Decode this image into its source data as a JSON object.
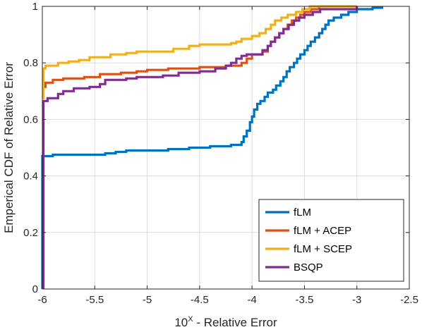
{
  "chart_data": {
    "type": "line",
    "title": "",
    "xlabel_base": "10",
    "xlabel_sup": "X",
    "xlabel_rest": " - Relative Error",
    "ylabel": "Emperical CDF of Relative Error",
    "xlim": [
      -6,
      -2.5
    ],
    "ylim": [
      0,
      1
    ],
    "xticks": [
      -6,
      -5.5,
      -5,
      -4.5,
      -4,
      -3.5,
      -3,
      -2.5
    ],
    "xtick_labels": [
      "-6",
      "-5.5",
      "-5",
      "-4.5",
      "-4",
      "-3.5",
      "-3",
      "-2.5"
    ],
    "yticks": [
      0,
      0.2,
      0.4,
      0.6,
      0.8,
      1
    ],
    "ytick_labels": [
      "0",
      "0.2",
      "0.4",
      "0.6",
      "0.8",
      "1"
    ],
    "grid": true,
    "legend_position": "bottom-right",
    "series": [
      {
        "name": "fLM",
        "color": "#0072BD",
        "points": [
          [
            -6,
            0
          ],
          [
            -6,
            0.47
          ],
          [
            -5.9,
            0.47
          ],
          [
            -5.9,
            0.475
          ],
          [
            -5.4,
            0.475
          ],
          [
            -5.4,
            0.48
          ],
          [
            -5.3,
            0.48
          ],
          [
            -5.3,
            0.485
          ],
          [
            -5.2,
            0.485
          ],
          [
            -5.2,
            0.49
          ],
          [
            -4.8,
            0.49
          ],
          [
            -4.8,
            0.495
          ],
          [
            -4.6,
            0.495
          ],
          [
            -4.6,
            0.5
          ],
          [
            -4.4,
            0.5
          ],
          [
            -4.4,
            0.505
          ],
          [
            -4.2,
            0.505
          ],
          [
            -4.2,
            0.51
          ],
          [
            -4.1,
            0.51
          ],
          [
            -4.1,
            0.52
          ],
          [
            -4.08,
            0.52
          ],
          [
            -4.08,
            0.54
          ],
          [
            -4.05,
            0.54
          ],
          [
            -4.05,
            0.56
          ],
          [
            -4.02,
            0.56
          ],
          [
            -4.02,
            0.59
          ],
          [
            -4.0,
            0.59
          ],
          [
            -4.0,
            0.61
          ],
          [
            -3.98,
            0.61
          ],
          [
            -3.98,
            0.635
          ],
          [
            -3.95,
            0.635
          ],
          [
            -3.95,
            0.655
          ],
          [
            -3.92,
            0.655
          ],
          [
            -3.92,
            0.665
          ],
          [
            -3.88,
            0.665
          ],
          [
            -3.88,
            0.68
          ],
          [
            -3.85,
            0.68
          ],
          [
            -3.85,
            0.695
          ],
          [
            -3.8,
            0.695
          ],
          [
            -3.8,
            0.705
          ],
          [
            -3.77,
            0.705
          ],
          [
            -3.77,
            0.72
          ],
          [
            -3.73,
            0.72
          ],
          [
            -3.73,
            0.735
          ],
          [
            -3.7,
            0.735
          ],
          [
            -3.7,
            0.75
          ],
          [
            -3.67,
            0.75
          ],
          [
            -3.67,
            0.77
          ],
          [
            -3.64,
            0.77
          ],
          [
            -3.64,
            0.785
          ],
          [
            -3.6,
            0.785
          ],
          [
            -3.6,
            0.8
          ],
          [
            -3.57,
            0.8
          ],
          [
            -3.57,
            0.815
          ],
          [
            -3.54,
            0.815
          ],
          [
            -3.54,
            0.83
          ],
          [
            -3.5,
            0.83
          ],
          [
            -3.5,
            0.845
          ],
          [
            -3.47,
            0.845
          ],
          [
            -3.47,
            0.86
          ],
          [
            -3.44,
            0.86
          ],
          [
            -3.44,
            0.875
          ],
          [
            -3.4,
            0.875
          ],
          [
            -3.4,
            0.89
          ],
          [
            -3.36,
            0.89
          ],
          [
            -3.36,
            0.905
          ],
          [
            -3.33,
            0.905
          ],
          [
            -3.33,
            0.92
          ],
          [
            -3.3,
            0.92
          ],
          [
            -3.3,
            0.935
          ],
          [
            -3.27,
            0.935
          ],
          [
            -3.27,
            0.95
          ],
          [
            -3.22,
            0.95
          ],
          [
            -3.22,
            0.96
          ],
          [
            -3.15,
            0.96
          ],
          [
            -3.15,
            0.97
          ],
          [
            -3.08,
            0.97
          ],
          [
            -3.08,
            0.98
          ],
          [
            -3.0,
            0.98
          ],
          [
            -3.0,
            0.99
          ],
          [
            -2.85,
            0.99
          ],
          [
            -2.85,
            0.995
          ],
          [
            -2.76,
            0.995
          ],
          [
            -2.76,
            1.0
          ]
        ]
      },
      {
        "name": "fLM + ACEP",
        "color": "#D95319",
        "points": [
          [
            -6,
            0.715
          ],
          [
            -5.97,
            0.715
          ],
          [
            -5.97,
            0.73
          ],
          [
            -5.9,
            0.73
          ],
          [
            -5.9,
            0.74
          ],
          [
            -5.8,
            0.74
          ],
          [
            -5.8,
            0.745
          ],
          [
            -5.6,
            0.745
          ],
          [
            -5.6,
            0.75
          ],
          [
            -5.45,
            0.75
          ],
          [
            -5.45,
            0.76
          ],
          [
            -5.25,
            0.76
          ],
          [
            -5.25,
            0.765
          ],
          [
            -5.1,
            0.765
          ],
          [
            -5.1,
            0.77
          ],
          [
            -5.0,
            0.77
          ],
          [
            -5.0,
            0.775
          ],
          [
            -4.8,
            0.775
          ],
          [
            -4.8,
            0.78
          ],
          [
            -4.5,
            0.78
          ],
          [
            -4.5,
            0.785
          ],
          [
            -4.25,
            0.785
          ],
          [
            -4.25,
            0.79
          ],
          [
            -4.1,
            0.79
          ],
          [
            -4.1,
            0.8
          ],
          [
            -4.05,
            0.8
          ],
          [
            -4.05,
            0.815
          ],
          [
            -4.0,
            0.815
          ],
          [
            -4.0,
            0.83
          ],
          [
            -3.9,
            0.83
          ],
          [
            -3.9,
            0.84
          ],
          [
            -3.85,
            0.84
          ],
          [
            -3.85,
            0.86
          ],
          [
            -3.82,
            0.86
          ],
          [
            -3.82,
            0.875
          ],
          [
            -3.78,
            0.875
          ],
          [
            -3.78,
            0.89
          ],
          [
            -3.74,
            0.89
          ],
          [
            -3.74,
            0.905
          ],
          [
            -3.7,
            0.905
          ],
          [
            -3.7,
            0.92
          ],
          [
            -3.66,
            0.92
          ],
          [
            -3.66,
            0.935
          ],
          [
            -3.62,
            0.935
          ],
          [
            -3.62,
            0.95
          ],
          [
            -3.58,
            0.95
          ],
          [
            -3.58,
            0.96
          ],
          [
            -3.54,
            0.96
          ],
          [
            -3.54,
            0.97
          ],
          [
            -3.5,
            0.97
          ],
          [
            -3.5,
            0.98
          ],
          [
            -3.44,
            0.98
          ],
          [
            -3.44,
            0.99
          ],
          [
            -3.36,
            0.99
          ],
          [
            -3.36,
            1.0
          ],
          [
            -3.0,
            1.0
          ]
        ]
      },
      {
        "name": "fLM + SCEP",
        "color": "#EDB120",
        "points": [
          [
            -6,
            0.675
          ],
          [
            -5.99,
            0.675
          ],
          [
            -5.99,
            0.78
          ],
          [
            -5.97,
            0.78
          ],
          [
            -5.97,
            0.79
          ],
          [
            -5.85,
            0.79
          ],
          [
            -5.85,
            0.8
          ],
          [
            -5.75,
            0.8
          ],
          [
            -5.75,
            0.805
          ],
          [
            -5.65,
            0.805
          ],
          [
            -5.65,
            0.81
          ],
          [
            -5.55,
            0.81
          ],
          [
            -5.55,
            0.82
          ],
          [
            -5.35,
            0.82
          ],
          [
            -5.35,
            0.83
          ],
          [
            -5.2,
            0.83
          ],
          [
            -5.2,
            0.835
          ],
          [
            -5.1,
            0.835
          ],
          [
            -5.1,
            0.84
          ],
          [
            -4.75,
            0.84
          ],
          [
            -4.75,
            0.85
          ],
          [
            -4.6,
            0.85
          ],
          [
            -4.6,
            0.86
          ],
          [
            -4.5,
            0.86
          ],
          [
            -4.5,
            0.865
          ],
          [
            -4.2,
            0.865
          ],
          [
            -4.2,
            0.87
          ],
          [
            -4.15,
            0.87
          ],
          [
            -4.15,
            0.875
          ],
          [
            -4.1,
            0.875
          ],
          [
            -4.1,
            0.885
          ],
          [
            -4.0,
            0.885
          ],
          [
            -4.0,
            0.895
          ],
          [
            -3.93,
            0.895
          ],
          [
            -3.93,
            0.905
          ],
          [
            -3.87,
            0.905
          ],
          [
            -3.87,
            0.92
          ],
          [
            -3.82,
            0.92
          ],
          [
            -3.82,
            0.935
          ],
          [
            -3.78,
            0.935
          ],
          [
            -3.78,
            0.95
          ],
          [
            -3.72,
            0.95
          ],
          [
            -3.72,
            0.96
          ],
          [
            -3.66,
            0.96
          ],
          [
            -3.66,
            0.97
          ],
          [
            -3.58,
            0.97
          ],
          [
            -3.58,
            0.98
          ],
          [
            -3.52,
            0.98
          ],
          [
            -3.52,
            0.99
          ],
          [
            -3.45,
            0.99
          ],
          [
            -3.45,
            1.0
          ],
          [
            -3.0,
            1.0
          ]
        ]
      },
      {
        "name": "BSQP",
        "color": "#7E2F8E",
        "points": [
          [
            -5.99,
            0
          ],
          [
            -5.99,
            0.665
          ],
          [
            -5.95,
            0.665
          ],
          [
            -5.95,
            0.675
          ],
          [
            -5.85,
            0.675
          ],
          [
            -5.85,
            0.69
          ],
          [
            -5.8,
            0.69
          ],
          [
            -5.8,
            0.7
          ],
          [
            -5.7,
            0.7
          ],
          [
            -5.7,
            0.71
          ],
          [
            -5.55,
            0.71
          ],
          [
            -5.55,
            0.715
          ],
          [
            -5.45,
            0.715
          ],
          [
            -5.45,
            0.725
          ],
          [
            -5.4,
            0.725
          ],
          [
            -5.4,
            0.74
          ],
          [
            -5.2,
            0.74
          ],
          [
            -5.2,
            0.745
          ],
          [
            -5.1,
            0.745
          ],
          [
            -5.1,
            0.75
          ],
          [
            -4.85,
            0.75
          ],
          [
            -4.85,
            0.755
          ],
          [
            -4.7,
            0.755
          ],
          [
            -4.7,
            0.765
          ],
          [
            -4.5,
            0.765
          ],
          [
            -4.5,
            0.77
          ],
          [
            -4.35,
            0.77
          ],
          [
            -4.35,
            0.78
          ],
          [
            -4.25,
            0.78
          ],
          [
            -4.25,
            0.79
          ],
          [
            -4.2,
            0.79
          ],
          [
            -4.2,
            0.8
          ],
          [
            -4.15,
            0.8
          ],
          [
            -4.15,
            0.815
          ],
          [
            -4.1,
            0.815
          ],
          [
            -4.1,
            0.825
          ],
          [
            -4.05,
            0.825
          ],
          [
            -4.05,
            0.83
          ],
          [
            -3.9,
            0.83
          ],
          [
            -3.9,
            0.845
          ],
          [
            -3.85,
            0.845
          ],
          [
            -3.85,
            0.86
          ],
          [
            -3.82,
            0.86
          ],
          [
            -3.82,
            0.875
          ],
          [
            -3.78,
            0.875
          ],
          [
            -3.78,
            0.89
          ],
          [
            -3.74,
            0.89
          ],
          [
            -3.74,
            0.905
          ],
          [
            -3.7,
            0.905
          ],
          [
            -3.7,
            0.92
          ],
          [
            -3.65,
            0.92
          ],
          [
            -3.65,
            0.935
          ],
          [
            -3.6,
            0.935
          ],
          [
            -3.6,
            0.95
          ],
          [
            -3.55,
            0.95
          ],
          [
            -3.55,
            0.96
          ],
          [
            -3.5,
            0.96
          ],
          [
            -3.5,
            0.97
          ],
          [
            -3.42,
            0.97
          ],
          [
            -3.42,
            0.98
          ],
          [
            -3.35,
            0.98
          ],
          [
            -3.35,
            0.99
          ],
          [
            -3.0,
            0.99
          ],
          [
            -3.0,
            1.0
          ]
        ]
      }
    ]
  }
}
